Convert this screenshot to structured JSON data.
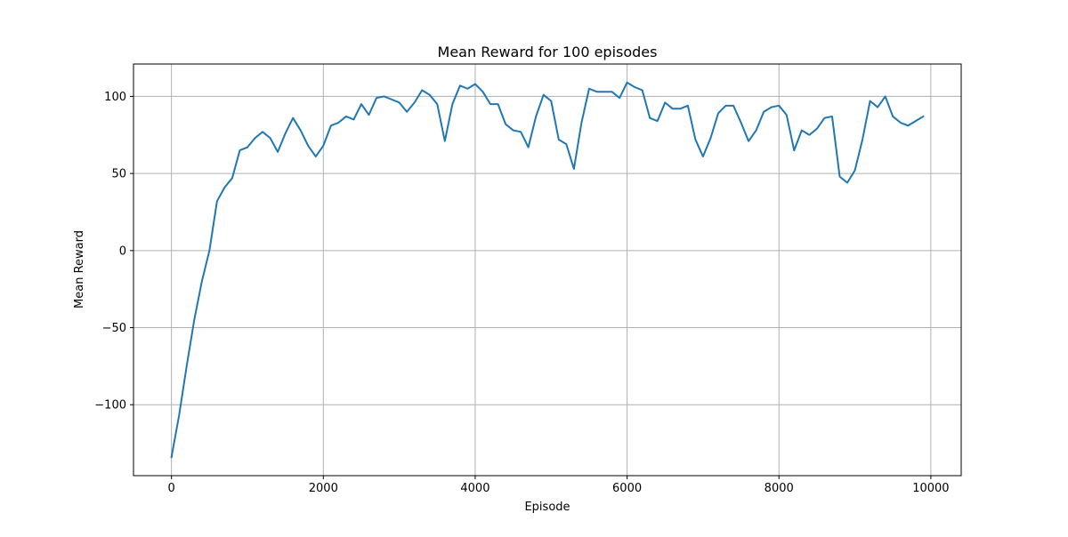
{
  "chart_data": {
    "type": "line",
    "title": "Mean Reward for 100 episodes",
    "xlabel": "Episode",
    "ylabel": "Mean Reward",
    "xlim": [
      -500,
      10400
    ],
    "ylim": [
      -146,
      121
    ],
    "xticks": [
      0,
      2000,
      4000,
      6000,
      8000,
      10000
    ],
    "xtick_labels": [
      "0",
      "2000",
      "4000",
      "6000",
      "8000",
      "10000"
    ],
    "yticks": [
      -100,
      -50,
      0,
      50,
      100
    ],
    "ytick_labels": [
      "−100",
      "−50",
      "0",
      "50",
      "100"
    ],
    "grid": true,
    "line_color": "#1f77b4",
    "series": [
      {
        "x": [
          0,
          100,
          200,
          300,
          400,
          500,
          600,
          700,
          800,
          900,
          1000,
          1100,
          1200,
          1300,
          1400,
          1500,
          1600,
          1700,
          1800,
          1900,
          2000,
          2100,
          2200,
          2300,
          2400,
          2500,
          2600,
          2700,
          2800,
          2900,
          3000,
          3100,
          3200,
          3300,
          3400,
          3500,
          3600,
          3700,
          3800,
          3900,
          4000,
          4100,
          4200,
          4300,
          4400,
          4500,
          4600,
          4700,
          4800,
          4900,
          5000,
          5100,
          5200,
          5300,
          5400,
          5500,
          5600,
          5700,
          5800,
          5900,
          6000,
          6100,
          6200,
          6300,
          6400,
          6500,
          6600,
          6700,
          6800,
          6900,
          7000,
          7100,
          7200,
          7300,
          7400,
          7500,
          7600,
          7700,
          7800,
          7900,
          8000,
          8100,
          8200,
          8300,
          8400,
          8500,
          8600,
          8700,
          8800,
          8900,
          9000,
          9100,
          9200,
          9300,
          9400,
          9500,
          9600,
          9700,
          9800,
          9900
        ],
        "values": [
          -134,
          -107,
          -75,
          -45,
          -20,
          0,
          32,
          41,
          47,
          65,
          67,
          73,
          77,
          73,
          64,
          76,
          86,
          78,
          68,
          61,
          68,
          81,
          83,
          87,
          85,
          95,
          88,
          99,
          100,
          98,
          96,
          90,
          96,
          104,
          101,
          95,
          71,
          95,
          107,
          105,
          108,
          103,
          95,
          95,
          82,
          78,
          77,
          67,
          87,
          101,
          97,
          72,
          69,
          53,
          83,
          105,
          103,
          103,
          103,
          99,
          109,
          106,
          104,
          86,
          84,
          96,
          92,
          92,
          94,
          72,
          61,
          73,
          89,
          94,
          94,
          83,
          71,
          78,
          90,
          93,
          94,
          88,
          65,
          78,
          75,
          79,
          86,
          87,
          48,
          44,
          52,
          72,
          97,
          93,
          100,
          87,
          83,
          81,
          84,
          87
        ]
      }
    ]
  }
}
